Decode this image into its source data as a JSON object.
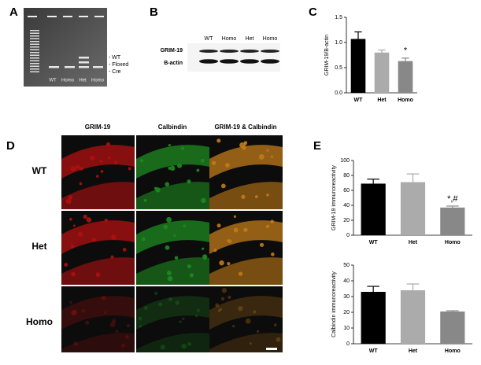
{
  "panel_labels": [
    "A",
    "B",
    "C",
    "D",
    "E"
  ],
  "gel": {
    "lanes": [
      "WT",
      "Homo",
      "Het",
      "Homo"
    ],
    "bands": [
      "- WT",
      "- Floxed",
      "- Cre"
    ]
  },
  "blot": {
    "lanes": [
      "WT",
      "Homo",
      "Het",
      "Homo"
    ],
    "rows": [
      "GRIM-19",
      "B-actin"
    ]
  },
  "micrographs": {
    "columns": [
      "GRIM-19",
      "Calbindin",
      "GRIM-19 & Calbindin"
    ],
    "rows": [
      "WT",
      "Het",
      "Homo"
    ]
  },
  "chart_data": [
    {
      "type": "bar",
      "ylabel": "GRIM-19/B-actin",
      "categories": [
        "WT",
        "Het",
        "Homo"
      ],
      "values": [
        1.07,
        0.8,
        0.63
      ],
      "errors": [
        0.14,
        0.05,
        0.06
      ],
      "colors": [
        "#000000",
        "#ababab",
        "#888888"
      ],
      "ylim": [
        0,
        1.5
      ],
      "yticks": [
        {
          "value": 0,
          "label": "0.0"
        },
        {
          "value": 0.5,
          "label": "0.5"
        },
        {
          "value": 1,
          "label": "1.0"
        },
        {
          "value": 1.5,
          "label": "1.5"
        }
      ],
      "annotations": [
        {
          "text": "*",
          "category": "Homo"
        }
      ]
    },
    {
      "type": "bar",
      "ylabel": "GRIM-19 immunoreactivity",
      "categories": [
        "WT",
        "Het",
        "Homo"
      ],
      "values": [
        69,
        71,
        37
      ],
      "errors": [
        6,
        11,
        2
      ],
      "colors": [
        "#000000",
        "#ababab",
        "#888888"
      ],
      "ylim": [
        0,
        100
      ],
      "yticks": [
        0,
        20,
        40,
        60,
        80,
        100
      ],
      "annotations": [
        {
          "text": "*,#",
          "category": "Homo"
        }
      ]
    },
    {
      "type": "bar",
      "ylabel": "Calbindin immunoreactivity",
      "categories": [
        "WT",
        "Het",
        "Homo"
      ],
      "values": [
        33,
        34,
        20.5
      ],
      "errors": [
        3.5,
        4,
        0.5
      ],
      "colors": [
        "#000000",
        "#ababab",
        "#888888"
      ],
      "ylim": [
        0,
        50
      ],
      "yticks": [
        0,
        10,
        20,
        30,
        40,
        50
      ]
    }
  ]
}
